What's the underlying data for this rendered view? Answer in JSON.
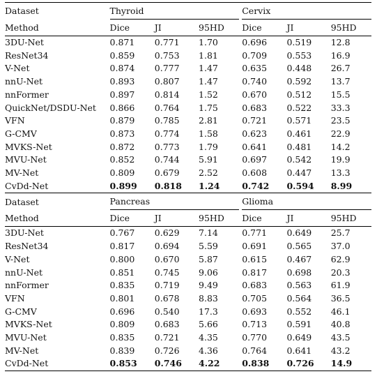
{
  "blocks": [
    {
      "dataset_label": "Dataset",
      "method_label": "Method",
      "groups": [
        "Thyroid",
        "Cervix"
      ],
      "metrics": [
        "Dice",
        "JI",
        "95HD"
      ],
      "rows": [
        {
          "method": "3DU-Net",
          "vals": [
            "0.871",
            "0.771",
            "1.70",
            "0.696",
            "0.519",
            "12.8"
          ]
        },
        {
          "method": "ResNet34",
          "vals": [
            "0.859",
            "0.753",
            "1.81",
            "0.709",
            "0.553",
            "16.9"
          ]
        },
        {
          "method": "V-Net",
          "vals": [
            "0.874",
            "0.777",
            "1.47",
            "0.635",
            "0.448",
            "26.7"
          ]
        },
        {
          "method": "nnU-Net",
          "vals": [
            "0.893",
            "0.807",
            "1.47",
            "0.740",
            "0.592",
            "13.7"
          ]
        },
        {
          "method": "nnFormer",
          "vals": [
            "0.897",
            "0.814",
            "1.52",
            "0.670",
            "0.512",
            "15.5"
          ]
        },
        {
          "method": "QuickNet/DSDU-Net",
          "vals": [
            "0.866",
            "0.764",
            "1.75",
            "0.683",
            "0.522",
            "33.3"
          ]
        },
        {
          "method": "VFN",
          "vals": [
            "0.879",
            "0.785",
            "2.81",
            "0.721",
            "0.571",
            "23.5"
          ]
        },
        {
          "method": "G-CMV",
          "vals": [
            "0.873",
            "0.774",
            "1.58",
            "0.623",
            "0.461",
            "22.9"
          ]
        },
        {
          "method": "MVKS-Net",
          "vals": [
            "0.872",
            "0.773",
            "1.79",
            "0.641",
            "0.481",
            "14.2"
          ]
        },
        {
          "method": "MVU-Net",
          "vals": [
            "0.852",
            "0.744",
            "5.91",
            "0.697",
            "0.542",
            "19.9"
          ]
        },
        {
          "method": "MV-Net",
          "vals": [
            "0.809",
            "0.679",
            "2.52",
            "0.608",
            "0.447",
            "13.3"
          ]
        },
        {
          "method": "CvDd-Net",
          "vals": [
            "0.899",
            "0.818",
            "1.24",
            "0.742",
            "0.594",
            "8.99"
          ],
          "bold": true
        }
      ]
    },
    {
      "dataset_label": "Dataset",
      "method_label": "Method",
      "groups": [
        "Pancreas",
        "Glioma"
      ],
      "metrics": [
        "Dice",
        "JI",
        "95HD"
      ],
      "rows": [
        {
          "method": "3DU-Net",
          "vals": [
            "0.767",
            "0.629",
            "7.14",
            "0.771",
            "0.649",
            "25.7"
          ]
        },
        {
          "method": "ResNet34",
          "vals": [
            "0.817",
            "0.694",
            "5.59",
            "0.691",
            "0.565",
            "37.0"
          ]
        },
        {
          "method": "V-Net",
          "vals": [
            "0.800",
            "0.670",
            "5.87",
            "0.615",
            "0.467",
            "62.9"
          ]
        },
        {
          "method": "nnU-Net",
          "vals": [
            "0.851",
            "0.745",
            "9.06",
            "0.817",
            "0.698",
            "20.3"
          ]
        },
        {
          "method": "nnFormer",
          "vals": [
            "0.835",
            "0.719",
            "9.49",
            "0.683",
            "0.563",
            "61.9"
          ]
        },
        {
          "method": "VFN",
          "vals": [
            "0.801",
            "0.678",
            "8.83",
            "0.705",
            "0.564",
            "36.5"
          ]
        },
        {
          "method": "G-CMV",
          "vals": [
            "0.696",
            "0.540",
            "17.3",
            "0.693",
            "0.552",
            "46.1"
          ]
        },
        {
          "method": "MVKS-Net",
          "vals": [
            "0.809",
            "0.683",
            "5.66",
            "0.713",
            "0.591",
            "40.8"
          ]
        },
        {
          "method": "MVU-Net",
          "vals": [
            "0.835",
            "0.721",
            "4.35",
            "0.770",
            "0.649",
            "43.5"
          ]
        },
        {
          "method": "MV-Net",
          "vals": [
            "0.839",
            "0.726",
            "4.36",
            "0.764",
            "0.641",
            "43.2"
          ]
        },
        {
          "method": "CvDd-Net",
          "vals": [
            "0.853",
            "0.746",
            "4.22",
            "0.838",
            "0.726",
            "14.9"
          ],
          "bold": true
        }
      ]
    }
  ]
}
